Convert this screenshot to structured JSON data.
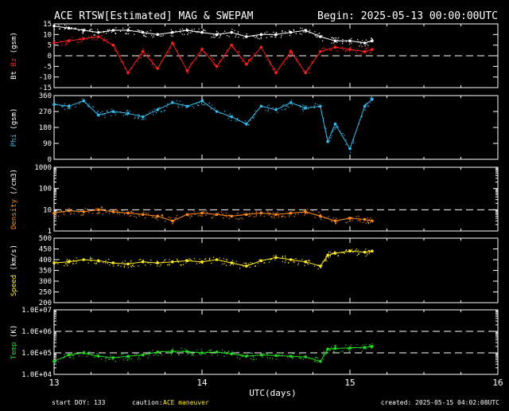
{
  "header": {
    "title": "ACE RTSW[Estimated] MAG & SWEPAM",
    "begin": "Begin: 2025-05-13 00:00:00UTC"
  },
  "footer": {
    "start_doy": "start DOY: 133",
    "caution_label": "caution:",
    "caution_value": "ACE maneuver",
    "created": "created: 2025-05-15 04:02:08UTC"
  },
  "colors": {
    "frame": "#ffffff",
    "bt": "#ffffff",
    "bz": "#ff2020",
    "phi": "#33bbee",
    "density": "#ff8c1a",
    "speed": "#ffee22",
    "temp": "#22dd22",
    "caution": "#ffee22"
  },
  "chart_data": [
    {
      "type": "scatter",
      "name": "bt-bz",
      "ylabel_parts": [
        "Bt",
        "Bz",
        "(gsm)"
      ],
      "ylim": [
        -15,
        15
      ],
      "yticks": [
        "15",
        "10",
        "5",
        "0",
        "-5",
        "-10",
        "-15"
      ],
      "dashed_at": [
        0
      ],
      "series": [
        {
          "name": "Bt",
          "x": [
            13.0,
            13.1,
            13.2,
            13.3,
            13.4,
            13.5,
            13.6,
            13.7,
            13.8,
            13.9,
            14.0,
            14.1,
            14.2,
            14.3,
            14.4,
            14.5,
            14.6,
            14.7,
            14.8,
            14.9,
            15.0,
            15.1,
            15.15
          ],
          "y": [
            14,
            13,
            12,
            11,
            12,
            12,
            11,
            10,
            11,
            12,
            11,
            10,
            11,
            9,
            10,
            10,
            11,
            12,
            9,
            7,
            7,
            6,
            7
          ]
        },
        {
          "name": "Bz",
          "x": [
            13.0,
            13.1,
            13.2,
            13.3,
            13.4,
            13.5,
            13.6,
            13.7,
            13.8,
            13.9,
            14.0,
            14.1,
            14.2,
            14.3,
            14.4,
            14.5,
            14.6,
            14.7,
            14.8,
            14.9,
            15.0,
            15.1,
            15.15
          ],
          "y": [
            6,
            7,
            8,
            9,
            5,
            -8,
            2,
            -6,
            6,
            -7,
            3,
            -5,
            5,
            -4,
            4,
            -8,
            2,
            -8,
            2,
            4,
            3,
            2,
            3
          ]
        }
      ]
    },
    {
      "type": "scatter",
      "name": "phi",
      "ylabel_parts": [
        "Phi",
        "(gsm)"
      ],
      "ylim": [
        0,
        360
      ],
      "yticks": [
        "360",
        "270",
        "180",
        "90",
        "0"
      ],
      "series": [
        {
          "name": "Phi",
          "x": [
            13.0,
            13.1,
            13.2,
            13.3,
            13.4,
            13.5,
            13.6,
            13.7,
            13.8,
            13.9,
            14.0,
            14.1,
            14.2,
            14.3,
            14.4,
            14.5,
            14.6,
            14.7,
            14.8,
            14.85,
            14.9,
            15.0,
            15.1,
            15.15
          ],
          "y": [
            310,
            300,
            330,
            250,
            270,
            260,
            240,
            280,
            320,
            300,
            330,
            270,
            240,
            200,
            300,
            280,
            320,
            290,
            300,
            100,
            200,
            60,
            300,
            340
          ]
        }
      ]
    },
    {
      "type": "scatter",
      "name": "density",
      "ylabel_parts": [
        "Density",
        "(/cm3)"
      ],
      "yscale": "log",
      "ylim": [
        1,
        1000
      ],
      "yticks": [
        "1000",
        "100",
        "10",
        "1"
      ],
      "ytick_values": [
        1000,
        100,
        10,
        1
      ],
      "dashed_at": [
        10
      ],
      "series": [
        {
          "name": "Density",
          "x": [
            13.0,
            13.1,
            13.2,
            13.3,
            13.4,
            13.5,
            13.6,
            13.7,
            13.8,
            13.9,
            14.0,
            14.1,
            14.2,
            14.3,
            14.4,
            14.5,
            14.6,
            14.7,
            14.8,
            14.9,
            15.0,
            15.1,
            15.15
          ],
          "y": [
            7,
            9,
            8,
            10,
            8,
            7,
            6,
            5,
            3,
            6,
            7,
            6,
            5,
            6,
            7,
            6,
            7,
            8,
            5,
            3,
            4,
            3.5,
            3
          ]
        }
      ]
    },
    {
      "type": "scatter",
      "name": "speed",
      "ylabel_parts": [
        "Speed",
        "(km/s)"
      ],
      "ylim": [
        200,
        500
      ],
      "yticks": [
        "500",
        "450",
        "400",
        "350",
        "300",
        "250",
        "200"
      ],
      "series": [
        {
          "name": "Speed",
          "x": [
            13.0,
            13.1,
            13.2,
            13.3,
            13.4,
            13.5,
            13.6,
            13.7,
            13.8,
            13.9,
            14.0,
            14.1,
            14.2,
            14.3,
            14.4,
            14.5,
            14.6,
            14.7,
            14.8,
            14.85,
            14.9,
            15.0,
            15.1,
            15.15
          ],
          "y": [
            385,
            390,
            400,
            395,
            385,
            380,
            390,
            385,
            390,
            395,
            390,
            400,
            385,
            370,
            395,
            410,
            400,
            390,
            370,
            420,
            430,
            440,
            435,
            440
          ]
        }
      ]
    },
    {
      "type": "scatter",
      "name": "temp",
      "ylabel_parts": [
        "Temp",
        "(K)"
      ],
      "yscale": "log",
      "ylim": [
        10000,
        10000000
      ],
      "yticks": [
        "1.0E+07",
        "1.0E+06",
        "1.0E+05",
        "1.0E+04"
      ],
      "ytick_values": [
        10000000,
        1000000,
        100000,
        10000
      ],
      "dashed_at": [
        1000000,
        100000
      ],
      "series": [
        {
          "name": "Temp",
          "x": [
            13.0,
            13.1,
            13.2,
            13.3,
            13.4,
            13.5,
            13.6,
            13.7,
            13.8,
            13.9,
            14.0,
            14.1,
            14.2,
            14.3,
            14.4,
            14.5,
            14.6,
            14.7,
            14.8,
            14.85,
            14.9,
            15.0,
            15.1,
            15.15
          ],
          "y": [
            40000,
            80000,
            100000,
            70000,
            60000,
            70000,
            80000,
            110000,
            120000,
            115000,
            100000,
            110000,
            90000,
            70000,
            80000,
            75000,
            70000,
            65000,
            40000,
            150000,
            160000,
            170000,
            180000,
            200000
          ]
        }
      ]
    }
  ],
  "xaxis": {
    "label": "UTC(days)",
    "xlim": [
      13,
      16
    ],
    "ticks": [
      13,
      14,
      15,
      16
    ],
    "tick_labels": [
      "13",
      "14",
      "15",
      "16"
    ]
  }
}
